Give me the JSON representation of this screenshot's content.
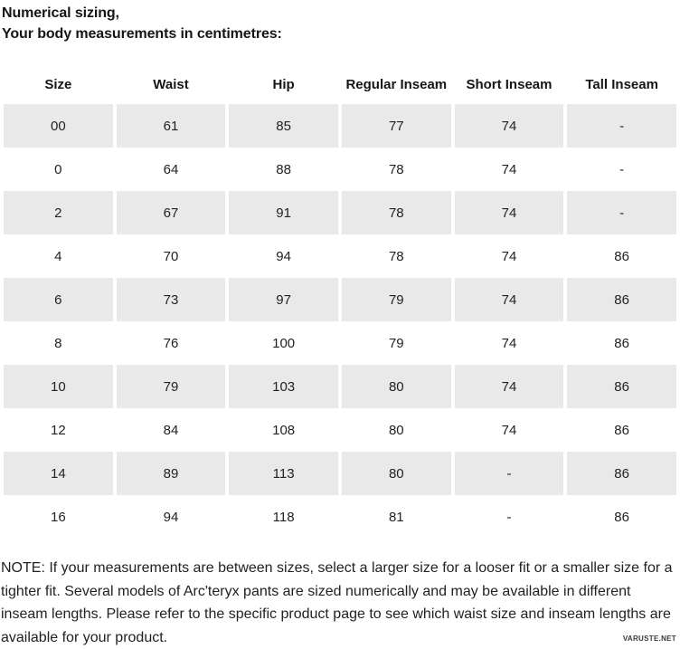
{
  "header": {
    "line1": "Numerical sizing,",
    "line2": "Your body measurements in centimetres:"
  },
  "table": {
    "columns": [
      "Size",
      "Waist",
      "Hip",
      "Regular Inseam",
      "Short Inseam",
      "Tall Inseam"
    ],
    "rows": [
      [
        "00",
        "61",
        "85",
        "77",
        "74",
        "-"
      ],
      [
        "0",
        "64",
        "88",
        "78",
        "74",
        "-"
      ],
      [
        "2",
        "67",
        "91",
        "78",
        "74",
        "-"
      ],
      [
        "4",
        "70",
        "94",
        "78",
        "74",
        "86"
      ],
      [
        "6",
        "73",
        "97",
        "79",
        "74",
        "86"
      ],
      [
        "8",
        "76",
        "100",
        "79",
        "74",
        "86"
      ],
      [
        "10",
        "79",
        "103",
        "80",
        "74",
        "86"
      ],
      [
        "12",
        "84",
        "108",
        "80",
        "74",
        "86"
      ],
      [
        "14",
        "89",
        "113",
        "80",
        "-",
        "86"
      ],
      [
        "16",
        "94",
        "118",
        "81",
        "-",
        "86"
      ]
    ]
  },
  "note": "NOTE: If your measurements are between sizes, select a larger size for a looser fit or a smaller size for a tighter fit. Several models of Arc'teryx pants are sized numerically and may be available in different inseam lengths. Please refer to the specific product page to see which waist size and inseam lengths are available for your product.",
  "watermark": "VARUSTE.NET",
  "colors": {
    "background": "#ffffff",
    "row_alt": "#e9e9e9",
    "text": "#222222"
  }
}
